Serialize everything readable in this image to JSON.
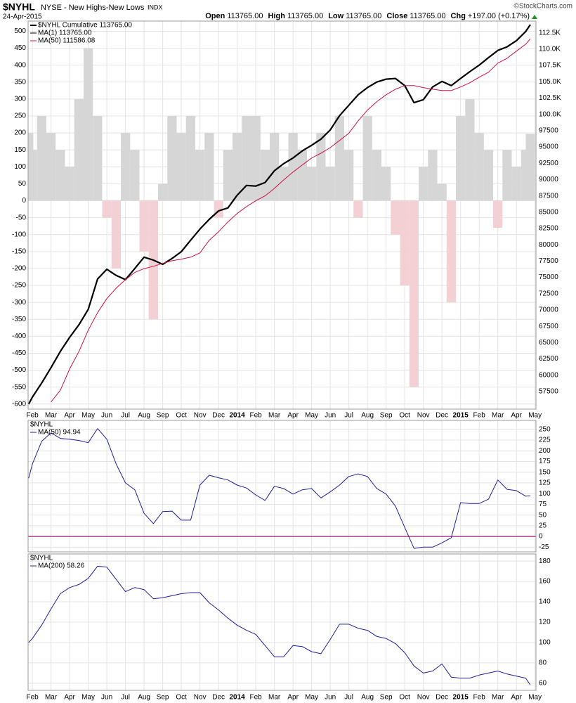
{
  "header": {
    "title": "$NYHL",
    "subtitle": "NYSE - New Highs-New Lows",
    "exchange": "INDX",
    "date": "24-Apr-2015",
    "credit": "©StockCharts.com",
    "quote": [
      {
        "label": "Open",
        "value": "113765.00"
      },
      {
        "label": "High",
        "value": "113765.00"
      },
      {
        "label": "Low",
        "value": "113765.00"
      },
      {
        "label": "Close",
        "value": "113765.00"
      },
      {
        "label": "Chg",
        "value": "+197.00 (+0.17%)"
      }
    ]
  },
  "chart_data": [
    {
      "type": "line",
      "y_axis_side": "left",
      "grid": true,
      "x": [
        -0.2,
        0,
        0.5,
        1,
        1.5,
        2,
        2.5,
        3,
        3.5,
        4,
        4.5,
        5,
        5.5,
        6,
        6.5,
        7,
        7.5,
        8,
        8.5,
        9,
        9.5,
        10,
        10.5,
        11,
        11.5,
        12,
        12.5,
        13,
        13.5,
        14,
        14.5,
        15,
        15.5,
        16,
        16.5,
        17,
        17.5,
        18,
        18.5,
        19,
        19.5,
        20,
        20.5,
        21,
        21.5,
        22,
        22.5,
        23,
        23.5,
        24,
        24.5,
        25,
        25.5,
        26,
        26.5,
        26.75
      ],
      "xlim": [
        -0.23,
        27.05
      ],
      "xticks": [
        {
          "value": 0,
          "label": "Feb"
        },
        {
          "value": 1,
          "label": "Mar"
        },
        {
          "value": 2,
          "label": "Apr"
        },
        {
          "value": 3,
          "label": "May"
        },
        {
          "value": 4,
          "label": "Jun"
        },
        {
          "value": 5,
          "label": "Jul"
        },
        {
          "value": 6,
          "label": "Aug"
        },
        {
          "value": 7,
          "label": "Sep"
        },
        {
          "value": 8,
          "label": "Oct"
        },
        {
          "value": 9,
          "label": "Nov"
        },
        {
          "value": 10,
          "label": "Dec"
        },
        {
          "value": 11,
          "label": "2014"
        },
        {
          "value": 12,
          "label": "Feb"
        },
        {
          "value": 13,
          "label": "Mar"
        },
        {
          "value": 14,
          "label": "Apr"
        },
        {
          "value": 15,
          "label": "May"
        },
        {
          "value": 16,
          "label": "Jun"
        },
        {
          "value": 17,
          "label": "Jul"
        },
        {
          "value": 18,
          "label": "Aug"
        },
        {
          "value": 19,
          "label": "Sep"
        },
        {
          "value": 20,
          "label": "Oct"
        },
        {
          "value": 21,
          "label": "Nov"
        },
        {
          "value": 22,
          "label": "Dec"
        },
        {
          "value": 23,
          "label": "2015"
        },
        {
          "value": 24,
          "label": "Feb"
        },
        {
          "value": 25,
          "label": "Mar"
        },
        {
          "value": 26,
          "label": "Apr"
        },
        {
          "value": 27,
          "label": "May"
        }
      ],
      "ylim": [
        -615,
        530
      ],
      "yticks": [
        500,
        450,
        400,
        350,
        300,
        250,
        200,
        150,
        100,
        50,
        0,
        -50,
        -100,
        -150,
        -200,
        -250,
        -300,
        -350,
        -400,
        -450,
        -500,
        -550,
        -600
      ],
      "y2lim": [
        54800,
        114300
      ],
      "y2ticks": [
        {
          "value": 112500,
          "label": "112.5K"
        },
        {
          "value": 110000,
          "label": "110.0K"
        },
        {
          "value": 107500,
          "label": "107.5K"
        },
        {
          "value": 105000,
          "label": "105.0K"
        },
        {
          "value": 102500,
          "label": "102.5K"
        },
        {
          "value": 100000,
          "label": "100.0K"
        },
        97500,
        95000,
        92500,
        90000,
        87500,
        85000,
        82500,
        80000,
        77500,
        75000,
        72500,
        70000,
        67500,
        65000,
        62500,
        60000,
        57500
      ],
      "legend_extra": {
        "name": "MA(1) 113765.00",
        "color": "#000000"
      },
      "series": [
        {
          "name": "$NYHL Cumulative 113765.00",
          "color": "#000000",
          "axis": "y2",
          "values": [
            55560,
            56640,
            58800,
            61170,
            63650,
            65800,
            67750,
            70100,
            74750,
            76250,
            75300,
            74650,
            76370,
            78100,
            77650,
            77000,
            77900,
            78950,
            80700,
            82400,
            83900,
            85200,
            85650,
            87600,
            89100,
            89000,
            89550,
            91350,
            92450,
            93300,
            94400,
            95250,
            96200,
            97600,
            99800,
            101400,
            103000,
            104100,
            104950,
            105400,
            105500,
            104400,
            101800,
            102250,
            104200,
            105050,
            104400,
            105500,
            106550,
            107550,
            108700,
            109800,
            110350,
            111300,
            112700,
            113765
          ]
        },
        {
          "name": "MA(50) 111586.08",
          "color": "#cc1040",
          "axis": "y2",
          "values": [
            null,
            null,
            null,
            55900,
            57700,
            60950,
            63650,
            66900,
            69600,
            71750,
            73350,
            74650,
            75750,
            76350,
            76700,
            77150,
            77550,
            77800,
            78100,
            78750,
            80700,
            82000,
            83500,
            84800,
            85850,
            86750,
            87500,
            88650,
            89950,
            91150,
            92250,
            93300,
            94050,
            94900,
            96000,
            97100,
            99000,
            100650,
            101950,
            103000,
            103850,
            104400,
            104400,
            104100,
            103850,
            103650,
            103650,
            104200,
            104850,
            105700,
            106450,
            107850,
            108600,
            109700,
            110750,
            111586.08
          ]
        },
        {
          "type": "bar",
          "color": "#d6d6d6",
          "negative_color": "#f2d0d4",
          "values": [
            200,
            150,
            250,
            200,
            150,
            100,
            300,
            450,
            250,
            -50,
            -200,
            200,
            150,
            -150,
            -350,
            50,
            250,
            200,
            250,
            150,
            200,
            -50,
            150,
            200,
            250,
            250,
            150,
            200,
            100,
            200,
            150,
            100,
            200,
            100,
            250,
            150,
            -50,
            250,
            150,
            100,
            -100,
            -250,
            -550,
            100,
            150,
            50,
            -300,
            250,
            300,
            200,
            150,
            -80,
            150,
            100,
            150,
            197
          ]
        }
      ]
    },
    {
      "type": "line",
      "title": "$NYHL",
      "y_axis_side": "right",
      "grid": true,
      "x": [
        -0.2,
        0,
        0.5,
        1,
        1.5,
        2,
        2.5,
        3,
        3.5,
        4,
        4.5,
        5,
        5.5,
        6,
        6.5,
        7,
        7.5,
        8,
        8.5,
        9,
        9.5,
        10,
        10.5,
        11,
        11.5,
        12,
        12.5,
        13,
        13.5,
        14,
        14.5,
        15,
        15.5,
        16,
        16.5,
        17,
        17.5,
        18,
        18.5,
        19,
        19.5,
        20,
        20.5,
        21,
        21.5,
        22,
        22.5,
        23,
        23.5,
        24,
        24.5,
        25,
        25.5,
        26,
        26.5,
        26.75
      ],
      "xlim": [
        -0.23,
        27.05
      ],
      "ylim": [
        -36,
        271
      ],
      "yticks": [
        250,
        225,
        200,
        175,
        150,
        125,
        100,
        75,
        50,
        25,
        0,
        -25
      ],
      "reference_line": {
        "value": 0,
        "color": "#99006e"
      },
      "series": [
        {
          "name": "MA(50) 94.94",
          "color": "#1f1f99",
          "values": [
            136,
            169,
            222,
            242,
            229,
            227,
            224,
            219,
            252,
            227,
            169,
            125,
            109,
            54,
            30,
            58,
            59,
            38,
            38,
            120,
            143,
            137,
            132,
            120,
            113,
            97,
            84,
            117,
            112,
            99,
            109,
            112,
            90,
            104,
            120,
            140,
            146,
            140,
            112,
            99,
            71,
            21,
            -28,
            -25,
            -25,
            -15,
            -3,
            79,
            77,
            77,
            87,
            132,
            110,
            107,
            94,
            94.94
          ]
        }
      ]
    },
    {
      "type": "line",
      "title": "$NYHL",
      "y_axis_side": "right",
      "grid": true,
      "x": [
        -0.2,
        0,
        0.5,
        1,
        1.5,
        2,
        2.5,
        3,
        3.5,
        4,
        4.5,
        5,
        5.5,
        6,
        6.5,
        7,
        7.5,
        8,
        8.5,
        9,
        9.5,
        10,
        10.5,
        11,
        11.5,
        12,
        12.5,
        13,
        13.5,
        14,
        14.5,
        15,
        15.5,
        16,
        16.5,
        17,
        17.5,
        18,
        18.5,
        19,
        19.5,
        20,
        20.5,
        21,
        21.5,
        22,
        22.5,
        23,
        23.5,
        24,
        24.5,
        25,
        25.5,
        26,
        26.5,
        26.75
      ],
      "xlim": [
        -0.23,
        27.05
      ],
      "xticks": [
        {
          "value": 0,
          "label": "Feb"
        },
        {
          "value": 1,
          "label": "Mar"
        },
        {
          "value": 2,
          "label": "Apr"
        },
        {
          "value": 3,
          "label": "May"
        },
        {
          "value": 4,
          "label": "Jun"
        },
        {
          "value": 5,
          "label": "Jul"
        },
        {
          "value": 6,
          "label": "Aug"
        },
        {
          "value": 7,
          "label": "Sep"
        },
        {
          "value": 8,
          "label": "Oct"
        },
        {
          "value": 9,
          "label": "Nov"
        },
        {
          "value": 10,
          "label": "Dec"
        },
        {
          "value": 11,
          "label": "2014"
        },
        {
          "value": 12,
          "label": "Feb"
        },
        {
          "value": 13,
          "label": "Mar"
        },
        {
          "value": 14,
          "label": "Apr"
        },
        {
          "value": 15,
          "label": "May"
        },
        {
          "value": 16,
          "label": "Jun"
        },
        {
          "value": 17,
          "label": "Jul"
        },
        {
          "value": 18,
          "label": "Aug"
        },
        {
          "value": 19,
          "label": "Sep"
        },
        {
          "value": 20,
          "label": "Oct"
        },
        {
          "value": 21,
          "label": "Nov"
        },
        {
          "value": 22,
          "label": "Dec"
        },
        {
          "value": 23,
          "label": "2015"
        },
        {
          "value": 24,
          "label": "Feb"
        },
        {
          "value": 25,
          "label": "Mar"
        },
        {
          "value": 26,
          "label": "Apr"
        },
        {
          "value": 27,
          "label": "May"
        }
      ],
      "ylim": [
        53,
        187
      ],
      "yticks": [
        180,
        160,
        140,
        120,
        100,
        80,
        60
      ],
      "series": [
        {
          "name": "MA(200) 58.26",
          "color": "#1f1f99",
          "values": [
            100,
            104,
            117,
            133,
            148,
            154,
            157,
            163,
            175,
            174,
            162,
            150,
            154,
            152,
            143,
            144,
            146,
            148,
            149,
            149,
            139,
            132,
            124,
            117,
            112,
            108,
            97,
            86,
            86,
            97,
            96,
            91,
            89,
            103,
            118,
            118,
            114,
            112,
            106,
            104,
            99,
            90,
            77,
            70,
            72,
            79,
            66,
            65,
            65,
            68,
            70,
            72,
            69,
            67,
            65,
            58.26
          ]
        }
      ]
    }
  ]
}
